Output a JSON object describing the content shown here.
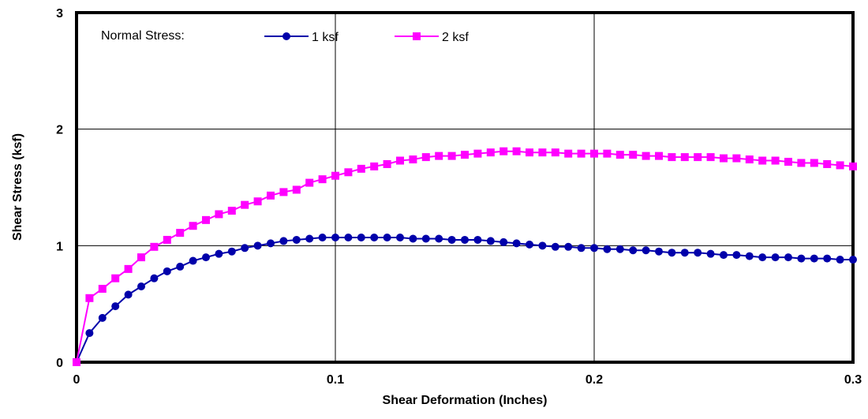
{
  "chart_data": {
    "type": "line",
    "xlabel": "Shear Deformation (Inches)",
    "ylabel": "Shear Stress (ksf)",
    "xlim": [
      0,
      0.3
    ],
    "ylim": [
      0,
      3
    ],
    "x_ticks": [
      0,
      0.1,
      0.2,
      0.3
    ],
    "x_tick_labels": [
      "0",
      "0.1",
      "0.2",
      "0.3"
    ],
    "y_ticks": [
      0,
      1,
      2,
      3
    ],
    "y_tick_labels": [
      "0",
      "1",
      "2",
      "3"
    ],
    "grid": true,
    "legend_title": "Normal Stress:",
    "legend_position": "top",
    "series": [
      {
        "name": "1 ksf",
        "color": "#0000aa",
        "marker": "circle",
        "x": [
          0,
          0.005,
          0.01,
          0.015,
          0.02,
          0.025,
          0.03,
          0.035,
          0.04,
          0.045,
          0.05,
          0.055,
          0.06,
          0.065,
          0.07,
          0.075,
          0.08,
          0.085,
          0.09,
          0.095,
          0.1,
          0.105,
          0.11,
          0.115,
          0.12,
          0.125,
          0.13,
          0.135,
          0.14,
          0.145,
          0.15,
          0.155,
          0.16,
          0.165,
          0.17,
          0.175,
          0.18,
          0.185,
          0.19,
          0.195,
          0.2,
          0.205,
          0.21,
          0.215,
          0.22,
          0.225,
          0.23,
          0.235,
          0.24,
          0.245,
          0.25,
          0.255,
          0.26,
          0.265,
          0.27,
          0.275,
          0.28,
          0.285,
          0.29,
          0.295,
          0.3
        ],
        "values": [
          0,
          0.25,
          0.38,
          0.48,
          0.58,
          0.65,
          0.72,
          0.78,
          0.82,
          0.87,
          0.9,
          0.93,
          0.95,
          0.98,
          1.0,
          1.02,
          1.04,
          1.05,
          1.06,
          1.07,
          1.07,
          1.07,
          1.07,
          1.07,
          1.07,
          1.07,
          1.06,
          1.06,
          1.06,
          1.05,
          1.05,
          1.05,
          1.04,
          1.03,
          1.02,
          1.01,
          1.0,
          0.99,
          0.99,
          0.98,
          0.98,
          0.97,
          0.97,
          0.96,
          0.96,
          0.95,
          0.94,
          0.94,
          0.94,
          0.93,
          0.92,
          0.92,
          0.91,
          0.9,
          0.9,
          0.9,
          0.89,
          0.89,
          0.89,
          0.88,
          0.88
        ]
      },
      {
        "name": "2 ksf",
        "color": "#ff00ff",
        "marker": "square",
        "x": [
          0,
          0.005,
          0.01,
          0.015,
          0.02,
          0.025,
          0.03,
          0.035,
          0.04,
          0.045,
          0.05,
          0.055,
          0.06,
          0.065,
          0.07,
          0.075,
          0.08,
          0.085,
          0.09,
          0.095,
          0.1,
          0.105,
          0.11,
          0.115,
          0.12,
          0.125,
          0.13,
          0.135,
          0.14,
          0.145,
          0.15,
          0.155,
          0.16,
          0.165,
          0.17,
          0.175,
          0.18,
          0.185,
          0.19,
          0.195,
          0.2,
          0.205,
          0.21,
          0.215,
          0.22,
          0.225,
          0.23,
          0.235,
          0.24,
          0.245,
          0.25,
          0.255,
          0.26,
          0.265,
          0.27,
          0.275,
          0.28,
          0.285,
          0.29,
          0.295,
          0.3
        ],
        "values": [
          0,
          0.55,
          0.63,
          0.72,
          0.8,
          0.9,
          0.99,
          1.05,
          1.11,
          1.17,
          1.22,
          1.27,
          1.3,
          1.35,
          1.38,
          1.43,
          1.46,
          1.48,
          1.54,
          1.57,
          1.6,
          1.63,
          1.66,
          1.68,
          1.7,
          1.73,
          1.74,
          1.76,
          1.77,
          1.77,
          1.78,
          1.79,
          1.8,
          1.81,
          1.81,
          1.8,
          1.8,
          1.8,
          1.79,
          1.79,
          1.79,
          1.79,
          1.78,
          1.78,
          1.77,
          1.77,
          1.76,
          1.76,
          1.76,
          1.76,
          1.75,
          1.75,
          1.74,
          1.73,
          1.73,
          1.72,
          1.71,
          1.71,
          1.7,
          1.69,
          1.68
        ]
      }
    ]
  }
}
